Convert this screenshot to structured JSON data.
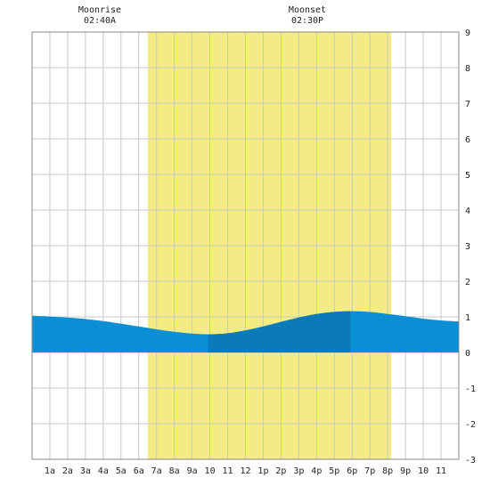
{
  "moon": {
    "moonrise_label": "Moonrise",
    "moonrise_time": "02:40A",
    "moonset_label": "Moonset",
    "moonset_time": "02:30P"
  },
  "colors": {
    "background": "#ffffff",
    "grid": "#c8c8c8",
    "daylight": "#f3ec84",
    "tide": "#0a8fd4",
    "tide_day": "#0a7ab8",
    "axis_text": "#222222"
  },
  "chart_data": {
    "type": "area",
    "title": "",
    "xlabel": "",
    "ylabel": "",
    "x_ticks": [
      "1a",
      "2a",
      "3a",
      "4a",
      "5a",
      "6a",
      "7a",
      "8a",
      "9a",
      "10",
      "11",
      "12",
      "1p",
      "2p",
      "3p",
      "4p",
      "5p",
      "6p",
      "7p",
      "8p",
      "9p",
      "10",
      "11"
    ],
    "xlim": [
      0,
      24
    ],
    "ylim": [
      -3,
      9
    ],
    "y_ticks": [
      9,
      8,
      7,
      6,
      5,
      4,
      3,
      2,
      1,
      0,
      -1,
      -2,
      -3
    ],
    "grid": true,
    "daylight_span": [
      6.5,
      20.2
    ],
    "low_tide_emphasis_span": [
      9.9,
      17.9
    ],
    "series": [
      {
        "x": [
          0,
          1,
          2,
          3,
          4,
          5,
          6,
          7,
          8,
          9,
          10,
          11,
          12,
          13,
          14,
          15,
          16,
          17,
          18,
          19,
          20,
          21,
          22,
          23,
          24
        ],
        "values": [
          1.03,
          1.01,
          0.98,
          0.94,
          0.88,
          0.81,
          0.73,
          0.65,
          0.58,
          0.53,
          0.51,
          0.54,
          0.62,
          0.73,
          0.86,
          0.98,
          1.08,
          1.14,
          1.16,
          1.14,
          1.08,
          1.02,
          0.95,
          0.9,
          0.87
        ]
      }
    ]
  }
}
